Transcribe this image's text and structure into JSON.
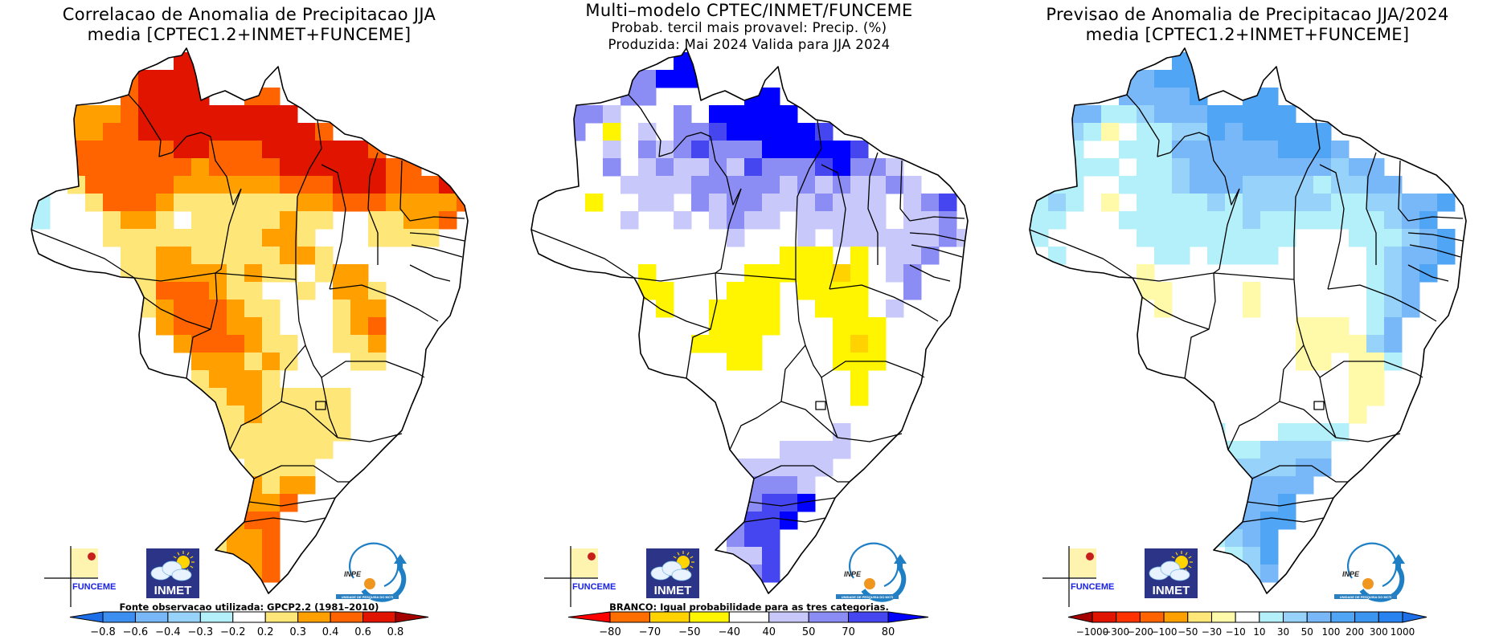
{
  "panels": [
    {
      "id": "correlation",
      "title_lines": [
        "Correlacao de Anomalia de Precipitacao JJA",
        "media [CPTEC1.2+INMET+FUNCEME]"
      ],
      "note": "Fonte observacao utilizada: GPCP2.2 (1981–2010)",
      "logos": {
        "funceme": "FUNCEME",
        "inmet": "INMET",
        "inpe": "INPE",
        "inpe_strip": "UNIDADE DE PESQUISA DO MCTI"
      }
    },
    {
      "id": "tercile-probability",
      "title_lines": [
        "Multi–modelo CPTEC/INMET/FUNCEME",
        "Probab. tercil mais provavel: Precip. (%)",
        "Produzida: Mai 2024  Valida para JJA 2024"
      ],
      "note": "BRANCO: Igual probabilidade para as tres categorias.",
      "logos": {
        "funceme": "FUNCEME",
        "inmet": "INMET",
        "inpe": "INPE",
        "inpe_strip": "UNIDADE DE PESQUISA DO MCTI"
      }
    },
    {
      "id": "anomaly-forecast",
      "title_lines": [
        "Previsao de Anomalia de Precipitacao JJA/2024",
        "media [CPTEC1.2+INMET+FUNCEME]"
      ],
      "note": "",
      "logos": {
        "funceme": "FUNCEME",
        "inmet": "INMET",
        "inpe": "INPE",
        "inpe_strip": "UNIDADE DE PESQUISA DO MCTI"
      }
    }
  ],
  "chart_data": [
    {
      "type": "heatmap",
      "title": "Correlacao de Anomalia de Precipitacao JJA - media [CPTEC1.2+INMET+FUNCEME]",
      "region": "Brazil",
      "variable": "Correlation of precipitation anomaly",
      "colorbar": {
        "ticks": [
          "-0.8",
          "-0.6",
          "-0.4",
          "-0.3",
          "-0.2",
          "0.2",
          "0.3",
          "0.4",
          "0.6",
          "0.8"
        ],
        "colors": [
          "#1e6ee8",
          "#3c8ff0",
          "#78b8f8",
          "#96d2fa",
          "#b4f0fa",
          "#ffffff",
          "#ffe678",
          "#ffa000",
          "#ff6400",
          "#e11400",
          "#a50000"
        ],
        "extend": "both"
      },
      "classes": {
        "c": 4,
        "y": 6,
        "o": 7,
        "r": 8,
        "R": 9
      },
      "grid_rows": [
        "........RR...............",
        ".....rRRRR...............",
        ".....rRRRR..rr...........",
        "..ooorRRRRRRRRR..........",
        "..oorrRRRRRRRRRRr........",
        "..rrrrrrRRrrrRRRRRRr.....",
        "..rrrrrrrorrrrRRRRRRrr...",
        "..yrrrrroooooorrrRRRrrrR.",
        "c..yrrroyyyyyyyoorrroooor",
        "c...yooy.yyyyyoyy..yyoor.",
        "....yyyyyyyyyooy...yyyy..",
        ".....yyooyyyyyooy........",
        ".....yyooooyoyy.yoo......",
        "......yrrroyy..y.ooy.....",
        "......yorrroyy...yoo.....",
        ".......orrrooy...yor.....",
        "........orrroyy..yyo.....",
        ".........oooyoy...yy.....",
        ".........yoooy...........",
        ".........yyooyyyyy.......",
        "..........yyoyyyyy.......",
        "..........yyyyyyyy.......",
        "...........yyyyyy........",
        "............yyyy.........",
        "............oyoo.........",
        "............oor..........",
        "..........yorr...........",
        "..........yoor...........",
        "..........yoor...........",
        "...........oor...........",
        "............o............"
      ]
    },
    {
      "type": "heatmap",
      "title": "Multi-modelo CPTEC/INMET/FUNCEME - Probab. tercil mais provavel: Precip. (%) - Produzida: Mai 2024 Valida para JJA 2024",
      "region": "Brazil",
      "variable": "Most likely tercile probability (%)",
      "colorbar": {
        "ticks": [
          "-80",
          "-70",
          "-50",
          "-40",
          "40",
          "50",
          "70",
          "80"
        ],
        "colors": [
          "#ff0000",
          "#ff6e00",
          "#ffd200",
          "#fff500",
          "#ffffff",
          "#c8c8fa",
          "#8c8cf5",
          "#4646f0",
          "#0000ff"
        ],
        "extend": "both"
      },
      "classes": {
        "Y": 3,
        "g": 2,
        "l": 5,
        "m": 6,
        "b": 7,
        "B": 8
      },
      "grid_rows": [
        "........BB...............",
        ".....mmBBB...............",
        ".....mm.....BB...........",
        "..mml...m.BBBBB..........",
        "..m.Y.l.mmbBBBBBb........",
        "....l.mlmbmmmBBBBBb......",
        "....m.lmllmlbmmmbBmml....",
        ".....llllmmmmmlmlmllml...",
        "...Y..ll.mlmmlllmlll.lmb.",
        ".....l..l.lmll.lllll.llm.",
        "...........l...l.llllllml",
        "..............YYY.Y.llm..",
        "......Y.....YYYYYgY.lm...",
        "......YY...YYY.YYYY..m...",
        ".......Y..YYYY..YYY.l....",
        "..........YYYY...YYY.....",
        ".........YYYY....YgY.....",
        "...........YY....YYY.....",
        "..................Y......",
        "..................Y......",
        ".........................",
        ".................l.......",
        "..............llll.......",
        "...........llllll........",
        "...........lmmml.........",
        "...........mmbbB.........",
        "...........mbbB..........",
        "...........mbb...........",
        ".........Y.llb...........",
        ".........YYlmb...........",
        "............m............"
      ]
    },
    {
      "type": "heatmap",
      "title": "Previsao de Anomalia de Precipitacao JJA/2024 - media [CPTEC1.2+INMET+FUNCEME]",
      "region": "Brazil",
      "variable": "Precipitation anomaly forecast",
      "colorbar": {
        "ticks": [
          "-1000",
          "-300",
          "-200",
          "-100",
          "-50",
          "-30",
          "-10",
          "10",
          "30",
          "50",
          "100",
          "200",
          "300",
          "1000"
        ],
        "colors": [
          "#a50000",
          "#e11400",
          "#ff3200",
          "#ff6400",
          "#ffa000",
          "#ffe678",
          "#fffaaa",
          "#ffffff",
          "#b4f0fa",
          "#96d2fa",
          "#78b8f8",
          "#50a5f5",
          "#3c96f0",
          "#2882f0",
          "#1e6ee8"
        ],
        "extend": "both"
      },
      "classes": {
        "p": 6,
        "q": 5,
        "c": 8,
        "d": 9,
        "e": 10,
        "f": 11
      },
      "grid_rows": [
        "........ff...............",
        ".....eefff...............",
        ".....eeeef..ff...........",
        "..eeccdeeefffff..........",
        "..dcp.ccddfefffff........",
        "..c..ccceeeeeefffe.......",
        "..ccc.ccdeeeeeeeedee.....",
        ".cc..cccdeeeddddcddee....",
        "cdc.p.ccccdcdddddccddeef.",
        "cc...cccccccdcccccccdef..",
        "c.....ccccccccc...cccdef.",
        ".c.....cc.cccc.....cdeef.",
        "......p............cdef..",
        "......pp....p......cde...",
        ".......p....p......cde...",
        "...............ppp.ce....",
        "...............ppppde....",
        "...............pp.ppc....",
        "..................pp.....",
        "..................pp.....",
        "..................p......",
        ".........cc...cccc.......",
        ".........ccccdddd........",
        "...........ddddee........",
        "...........deeee.........",
        "...........eeef..........",
        "..........ceeff..........",
        ".........qcdef...........",
        ".........p.cdf...........",
        "...........cde...........",
        "............e............"
      ]
    }
  ]
}
